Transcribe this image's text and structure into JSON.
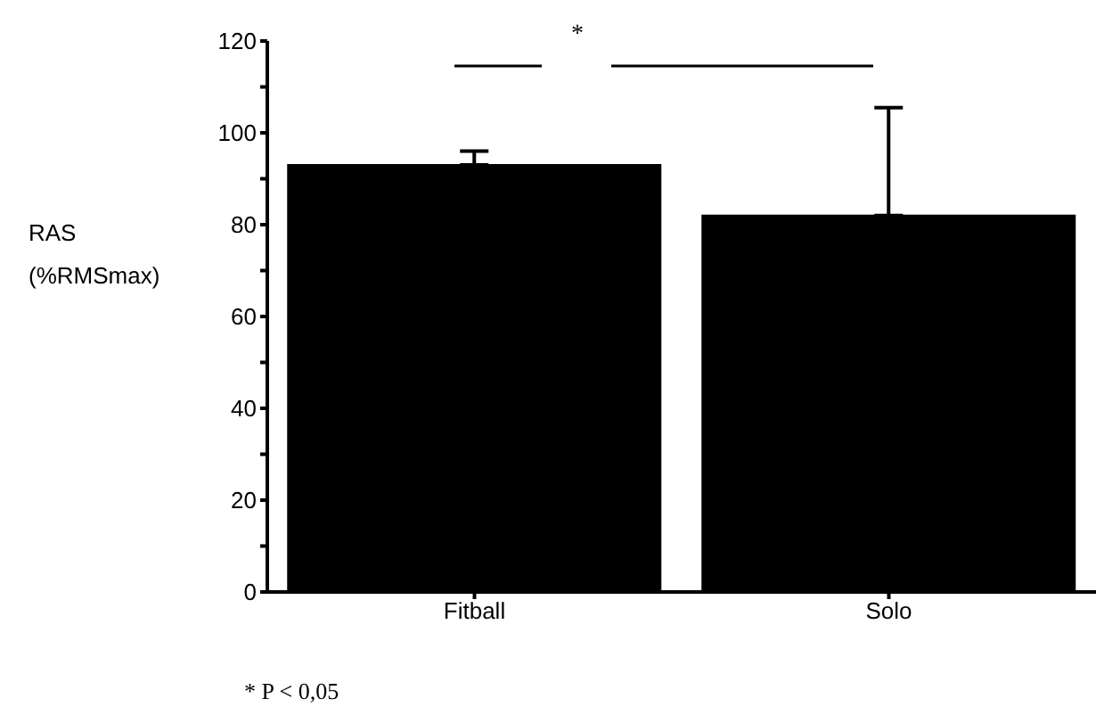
{
  "chart_data": {
    "type": "bar",
    "ylabel": "RAS\n(%RMSmax)",
    "categories": [
      "Fitball",
      "Solo"
    ],
    "values": [
      93,
      82
    ],
    "color": "#000000",
    "errors": [
      [
        93,
        96
      ],
      [
        82,
        105.5
      ]
    ],
    "ylim": [
      0,
      120
    ],
    "yticks": [
      0,
      {
        "value": 10,
        "label": null
      },
      20,
      {
        "value": 30,
        "label": null
      },
      40,
      {
        "value": 50,
        "label": null
      },
      60,
      {
        "value": 70,
        "label": null
      },
      80,
      {
        "value": 90,
        "label": null
      },
      100,
      {
        "value": 110,
        "label": null
      },
      120
    ],
    "annotations": [
      "*",
      "* P < 0,05"
    ],
    "grid": false,
    "legend": false
  }
}
